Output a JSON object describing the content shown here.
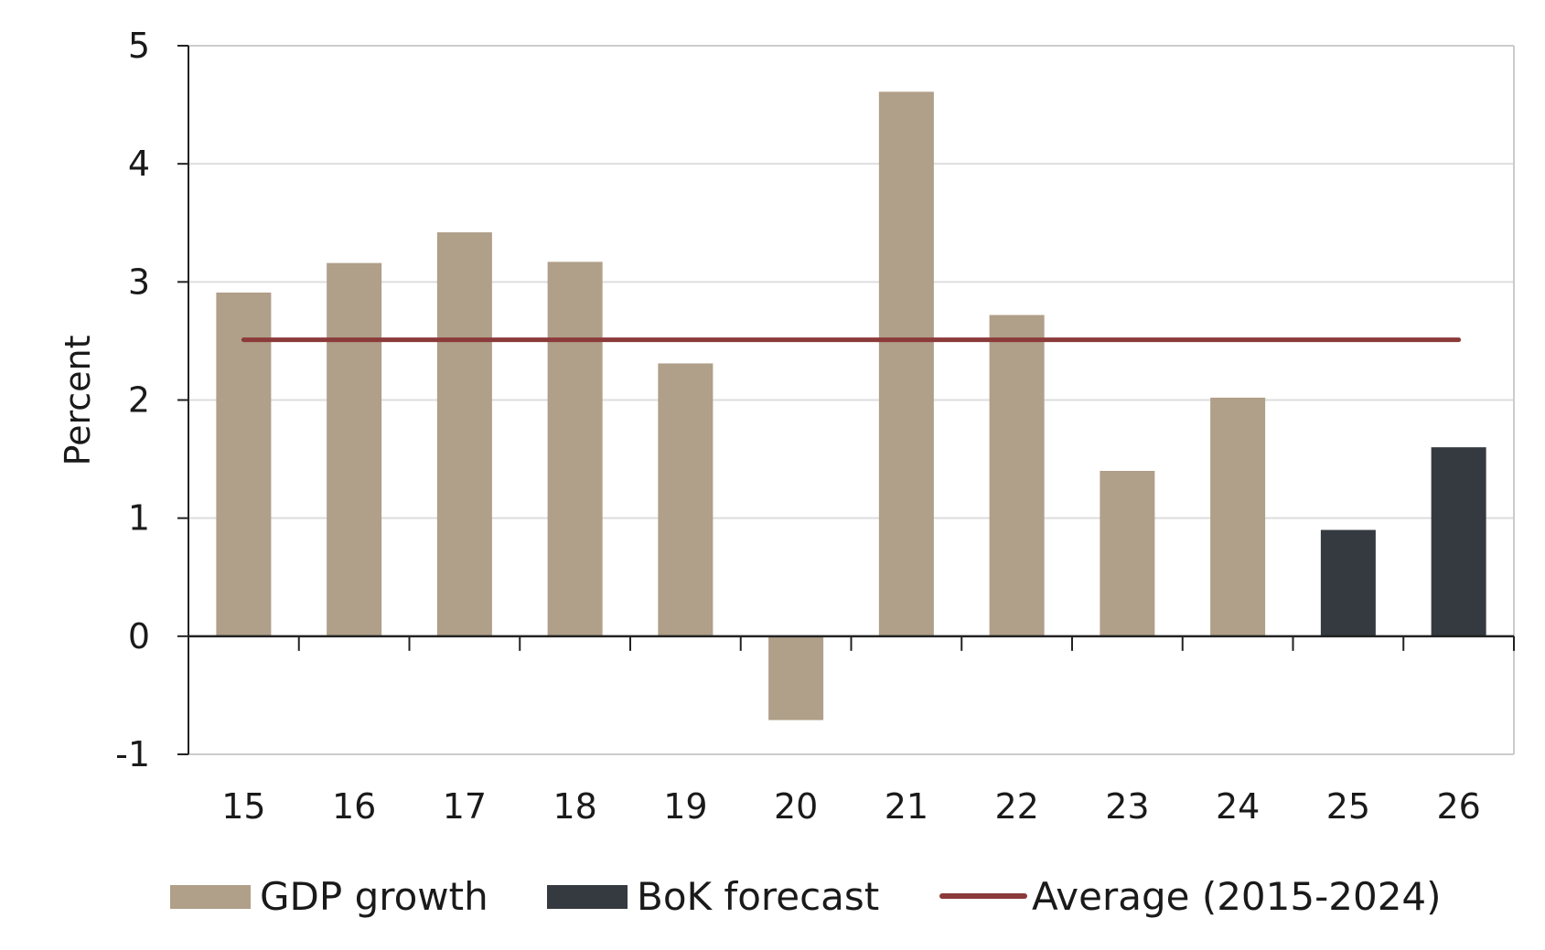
{
  "chart_data": {
    "type": "bar",
    "categories": [
      "15",
      "16",
      "17",
      "18",
      "19",
      "20",
      "21",
      "22",
      "23",
      "24",
      "25",
      "26"
    ],
    "series": [
      {
        "name": "GDP growth",
        "color": "#b09f89",
        "values": [
          2.91,
          3.16,
          3.42,
          3.17,
          2.31,
          -0.71,
          4.61,
          2.72,
          1.4,
          2.02,
          null,
          null
        ]
      },
      {
        "name": "BoK forecast",
        "color": "#343a40",
        "values": [
          null,
          null,
          null,
          null,
          null,
          null,
          null,
          null,
          null,
          null,
          0.9,
          1.6
        ]
      }
    ],
    "average_line": {
      "name": "Average (2015-2024)",
      "color": "#8b3a3a",
      "value": 2.51
    },
    "ylabel": "Percent",
    "xlabel": "",
    "title": "",
    "ylim": [
      -1,
      5
    ],
    "yticks": [
      5,
      4,
      3,
      2,
      1,
      0,
      -1
    ],
    "grid": true,
    "legend_position": "bottom"
  }
}
